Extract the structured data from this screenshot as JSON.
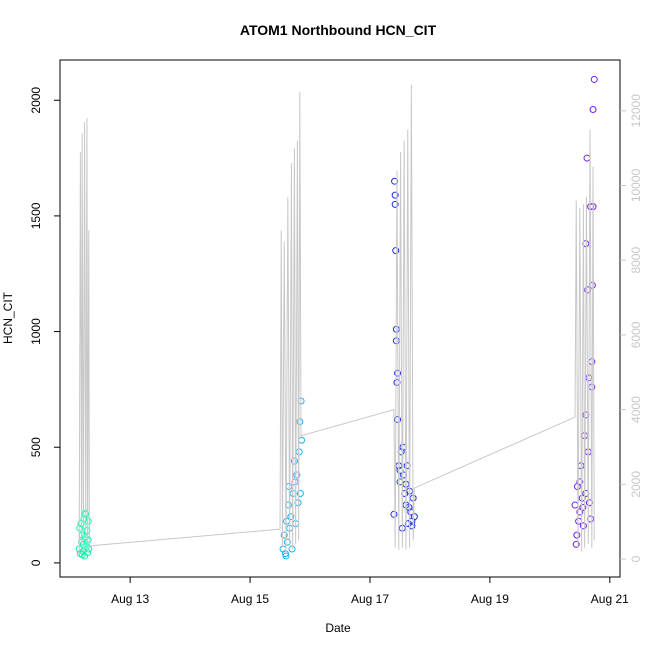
{
  "chart_data": {
    "type": "scatter",
    "title": "ATOM1 Northbound HCN_CIT",
    "x_label": "Date",
    "y_label": "HCN_CIT",
    "xlim": [
      11.83,
      21.17
    ],
    "xticks": [
      {
        "value": 13,
        "label": "Aug 13"
      },
      {
        "value": 15,
        "label": "Aug 15"
      },
      {
        "value": 17,
        "label": "Aug 17"
      },
      {
        "value": 19,
        "label": "Aug 19"
      },
      {
        "value": 21,
        "label": "Aug 21"
      }
    ],
    "ylim": [
      -61,
      2174
    ],
    "yticks": [
      0,
      500,
      1000,
      1500,
      2000
    ],
    "y2lim": [
      -482,
      13360
    ],
    "y2ticks": [
      0,
      2000,
      4000,
      6000,
      8000,
      10000,
      12000
    ],
    "series": [
      {
        "color": "#10f0b0",
        "x": [
          12.15,
          12.16,
          12.17,
          12.18,
          12.19,
          12.2,
          12.21,
          12.22,
          12.23,
          12.24,
          12.25,
          12.26,
          12.27,
          12.28,
          12.29,
          12.3,
          12.31,
          12.2,
          12.25,
          12.3
        ],
        "values": [
          60,
          150,
          40,
          170,
          90,
          120,
          50,
          80,
          190,
          30,
          110,
          210,
          70,
          140,
          45,
          100,
          60,
          35,
          215,
          180
        ]
      },
      {
        "color": "#20b0f0",
        "x": [
          15.55,
          15.57,
          15.59,
          15.61,
          15.62,
          15.64,
          15.66,
          15.68,
          15.7,
          15.72,
          15.74,
          15.76,
          15.78,
          15.8,
          15.82,
          15.84,
          15.85,
          15.6,
          15.65,
          15.75,
          15.83,
          15.86
        ],
        "values": [
          60,
          120,
          40,
          180,
          90,
          250,
          150,
          200,
          60,
          300,
          440,
          170,
          380,
          260,
          480,
          300,
          700,
          30,
          330,
          350,
          610,
          530
        ]
      },
      {
        "color": "#1a30f0",
        "x": [
          17.4,
          17.41,
          17.42,
          17.43,
          17.44,
          17.45,
          17.46,
          17.48,
          17.5,
          17.52,
          17.54,
          17.56,
          17.58,
          17.6,
          17.62,
          17.64,
          17.66,
          17.68,
          17.7,
          17.72,
          17.74,
          17.42,
          17.44,
          17.46,
          17.5,
          17.55,
          17.6,
          17.65,
          17.7
        ],
        "values": [
          210,
          1650,
          1590,
          1350,
          960,
          780,
          820,
          420,
          350,
          480,
          150,
          380,
          300,
          250,
          420,
          170,
          310,
          220,
          180,
          280,
          200,
          1550,
          1010,
          620,
          400,
          500,
          340,
          240,
          160
        ]
      },
      {
        "color": "#7020f0",
        "x": [
          20.42,
          20.44,
          20.46,
          20.48,
          20.5,
          20.52,
          20.54,
          20.56,
          20.58,
          20.6,
          20.62,
          20.64,
          20.66,
          20.68,
          20.7,
          20.72,
          20.74,
          20.45,
          20.5,
          20.55,
          20.6,
          20.65,
          20.7,
          20.72,
          20.6,
          20.63,
          20.68,
          20.71
        ],
        "values": [
          250,
          80,
          330,
          180,
          220,
          420,
          280,
          160,
          550,
          300,
          1750,
          480,
          260,
          190,
          870,
          1960,
          2090,
          120,
          350,
          240,
          640,
          800,
          760,
          1540,
          1380,
          1180,
          1540,
          1200
        ]
      },
      {
        "color": "#c8c8c8",
        "axis": "y2",
        "line": true,
        "x": [
          12.15,
          12.17,
          12.19,
          12.2,
          12.22,
          12.24,
          12.26,
          12.28,
          12.29,
          12.31,
          12.32,
          15.5,
          15.52,
          15.54,
          15.57,
          15.6,
          15.63,
          15.66,
          15.69,
          15.71,
          15.74,
          15.76,
          15.79,
          15.81,
          15.83,
          15.85,
          17.4,
          17.42,
          17.45,
          17.48,
          17.51,
          17.54,
          17.57,
          17.6,
          17.63,
          17.66,
          17.69,
          17.72,
          17.74,
          20.42,
          20.44,
          20.47,
          20.5,
          20.53,
          20.56,
          20.58,
          20.61,
          20.64,
          20.67,
          20.7,
          20.72,
          20.74
        ],
        "values": [
          150,
          10900,
          300,
          11400,
          200,
          11700,
          400,
          11800,
          200,
          8800,
          350,
          800,
          8800,
          300,
          8500,
          200,
          9700,
          300,
          10600,
          250,
          11000,
          400,
          11200,
          500,
          12500,
          3300,
          4000,
          300,
          10400,
          250,
          10900,
          300,
          11200,
          250,
          11500,
          300,
          12700,
          500,
          1900,
          3800,
          9600,
          300,
          9400,
          200,
          9500,
          300,
          9700,
          400,
          11500,
          300,
          10500,
          500
        ]
      }
    ]
  }
}
